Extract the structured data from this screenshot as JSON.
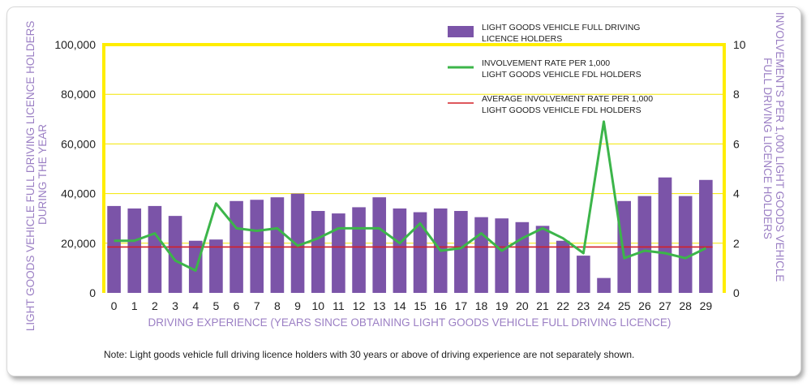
{
  "chart_data": {
    "type": "bar",
    "categories": [
      "0",
      "1",
      "2",
      "3",
      "4",
      "5",
      "6",
      "7",
      "8",
      "9",
      "10",
      "11",
      "12",
      "13",
      "14",
      "15",
      "16",
      "17",
      "18",
      "19",
      "20",
      "21",
      "22",
      "23",
      "24",
      "25",
      "26",
      "27",
      "28",
      "29"
    ],
    "series": [
      {
        "name": "LIGHT GOODS VEHICLE FULL DRIVING LICENCE HOLDERS",
        "type": "bar",
        "axis": "left",
        "color": "#7b54a8",
        "values": [
          35000,
          34000,
          35000,
          31000,
          21000,
          21500,
          37000,
          37500,
          38500,
          40000,
          33000,
          32000,
          34500,
          38500,
          34000,
          32500,
          34000,
          33000,
          30500,
          30000,
          28500,
          27000,
          21000,
          15000,
          6000,
          37000,
          39000,
          46500,
          39000,
          45500
        ]
      },
      {
        "name": "INVOLVEMENT RATE PER 1,000 LIGHT GOODS VEHICLE FDL HOLDERS",
        "type": "line",
        "axis": "right",
        "color": "#3cb54a",
        "values": [
          2.1,
          2.1,
          2.4,
          1.3,
          0.9,
          3.6,
          2.6,
          2.5,
          2.6,
          1.9,
          2.2,
          2.6,
          2.6,
          2.6,
          2.0,
          2.8,
          1.7,
          1.8,
          2.4,
          1.7,
          2.2,
          2.6,
          2.2,
          1.6,
          6.9,
          1.4,
          1.7,
          1.6,
          1.4,
          1.8
        ]
      },
      {
        "name": "AVERAGE INVOLVEMENT RATE PER 1,000 LIGHT GOODS VEHICLE FDL HOLDERS",
        "type": "hline",
        "axis": "right",
        "color": "#d32027",
        "value": 1.85
      }
    ],
    "y_left": {
      "label": "LIGHT GOODS VEHICLE FULL DRIVING LICENCE HOLDERS DURING THE YEAR",
      "ylim": [
        0,
        100000
      ],
      "ticks": [
        "0",
        "20,000",
        "40,000",
        "60,000",
        "80,000",
        "100,000"
      ]
    },
    "y_right": {
      "label": "INVOLVEMENTS PER 1,000 LIGHT GOODS VEHICLE FULL DRIVING LICENCE  HOLDERS",
      "ylim": [
        0,
        10
      ],
      "ticks": [
        "0",
        "2",
        "4",
        "6",
        "8",
        "10"
      ]
    },
    "xlabel": "DRIVING EXPERIENCE (YEARS SINCE OBTAINING LIGHT GOODS VEHICLE FULL DRIVING LICENCE)",
    "grid": true,
    "legend_position": "top-right",
    "legend": [
      {
        "kind": "bar",
        "color": "#7b54a8",
        "lines": [
          "LIGHT GOODS VEHICLE FULL DRIVING",
          "LICENCE HOLDERS"
        ]
      },
      {
        "kind": "line",
        "color": "#3cb54a",
        "lines": [
          "INVOLVEMENT RATE PER 1,000",
          "LIGHT GOODS VEHICLE FDL HOLDERS"
        ]
      },
      {
        "kind": "line",
        "color": "#d32027",
        "lines": [
          "AVERAGE INVOLVEMENT RATE PER 1,000",
          "LIGHT GOODS VEHICLE FDL HOLDERS"
        ]
      }
    ],
    "frame_color": "#ffed00",
    "axis_title_color": "#9b7fc4"
  },
  "note": "Note: Light goods vehicle full driving licence holders with 30 years or above of driving experience are not separately shown."
}
